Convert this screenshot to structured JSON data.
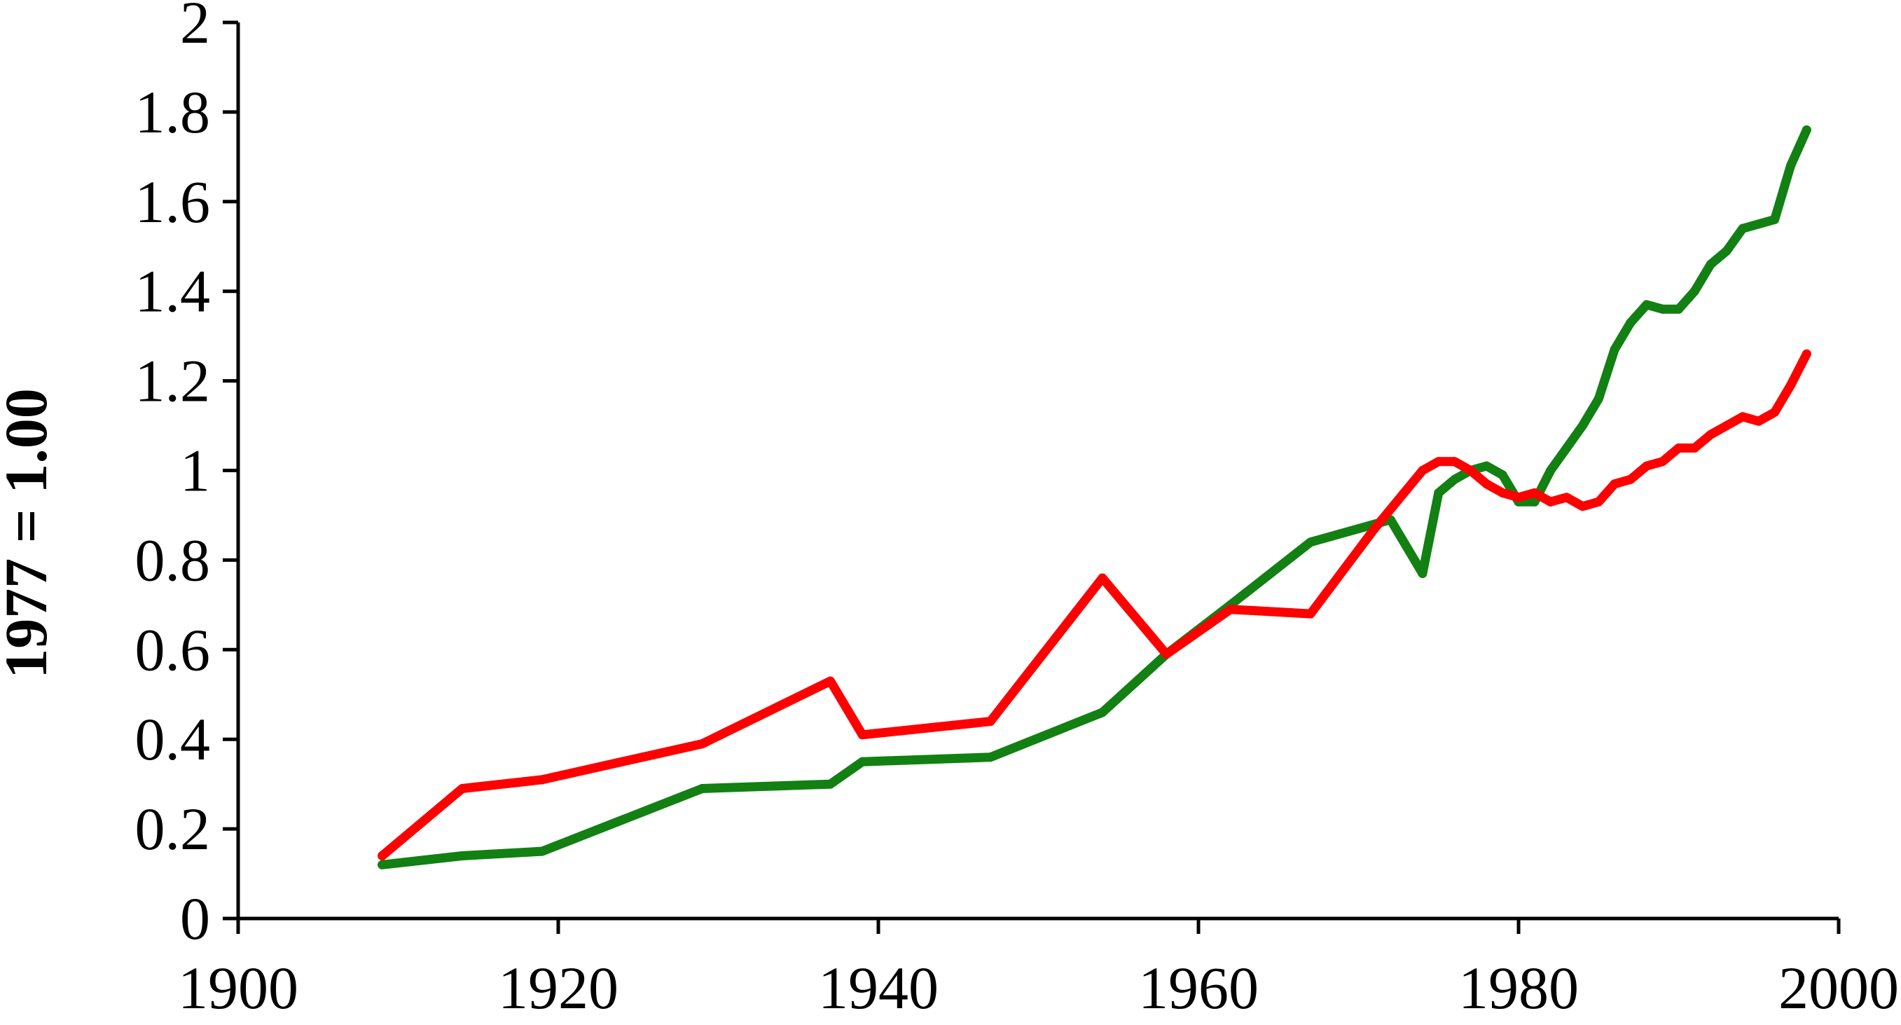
{
  "chart_data": {
    "type": "line",
    "title": "",
    "xlabel": "",
    "ylabel": "1977 = 1.00",
    "xlim": [
      1900,
      2000
    ],
    "ylim": [
      0,
      2
    ],
    "x_ticks": [
      1900,
      1920,
      1940,
      1960,
      1980,
      2000
    ],
    "y_ticks": [
      0,
      0.2,
      0.4,
      0.6,
      0.8,
      1,
      1.2,
      1.4,
      1.6,
      1.8,
      2
    ],
    "x_tick_labels": [
      "1900",
      "1920",
      "1940",
      "1960",
      "1980",
      "2000"
    ],
    "y_tick_labels": [
      "0",
      "0.2",
      "0.4",
      "0.6",
      "0.8",
      "1",
      "1.2",
      "1.4",
      "1.6",
      "1.8",
      "2"
    ],
    "grid": false,
    "legend": "none",
    "series": [
      {
        "color": "#128012",
        "x": [
          1909,
          1914,
          1919,
          1929,
          1937,
          1939,
          1947,
          1954,
          1958,
          1962,
          1967,
          1972,
          1974,
          1975,
          1976,
          1977,
          1978,
          1979,
          1980,
          1981,
          1982,
          1983,
          1984,
          1985,
          1986,
          1987,
          1988,
          1989,
          1990,
          1991,
          1992,
          1993,
          1994,
          1995,
          1996,
          1997,
          1998
        ],
        "y": [
          0.12,
          0.14,
          0.15,
          0.29,
          0.3,
          0.35,
          0.36,
          0.46,
          0.59,
          0.7,
          0.84,
          0.89,
          0.77,
          0.95,
          0.98,
          1.0,
          1.01,
          0.99,
          0.93,
          0.93,
          1.0,
          1.05,
          1.1,
          1.16,
          1.27,
          1.33,
          1.37,
          1.36,
          1.36,
          1.4,
          1.46,
          1.49,
          1.54,
          1.55,
          1.56,
          1.68,
          1.76
        ]
      },
      {
        "color": "#ff0000",
        "x": [
          1909,
          1914,
          1919,
          1929,
          1937,
          1939,
          1947,
          1954,
          1958,
          1962,
          1967,
          1971,
          1974,
          1975,
          1976,
          1977,
          1978,
          1979,
          1980,
          1981,
          1982,
          1983,
          1984,
          1985,
          1986,
          1987,
          1988,
          1989,
          1990,
          1991,
          1992,
          1993,
          1994,
          1995,
          1996,
          1997,
          1998
        ],
        "y": [
          0.14,
          0.29,
          0.31,
          0.39,
          0.53,
          0.41,
          0.44,
          0.76,
          0.59,
          0.69,
          0.68,
          0.87,
          1.0,
          1.02,
          1.02,
          1.0,
          0.97,
          0.95,
          0.94,
          0.95,
          0.93,
          0.94,
          0.92,
          0.93,
          0.97,
          0.98,
          1.01,
          1.02,
          1.05,
          1.05,
          1.08,
          1.1,
          1.12,
          1.11,
          1.13,
          1.19,
          1.26
        ]
      }
    ]
  }
}
